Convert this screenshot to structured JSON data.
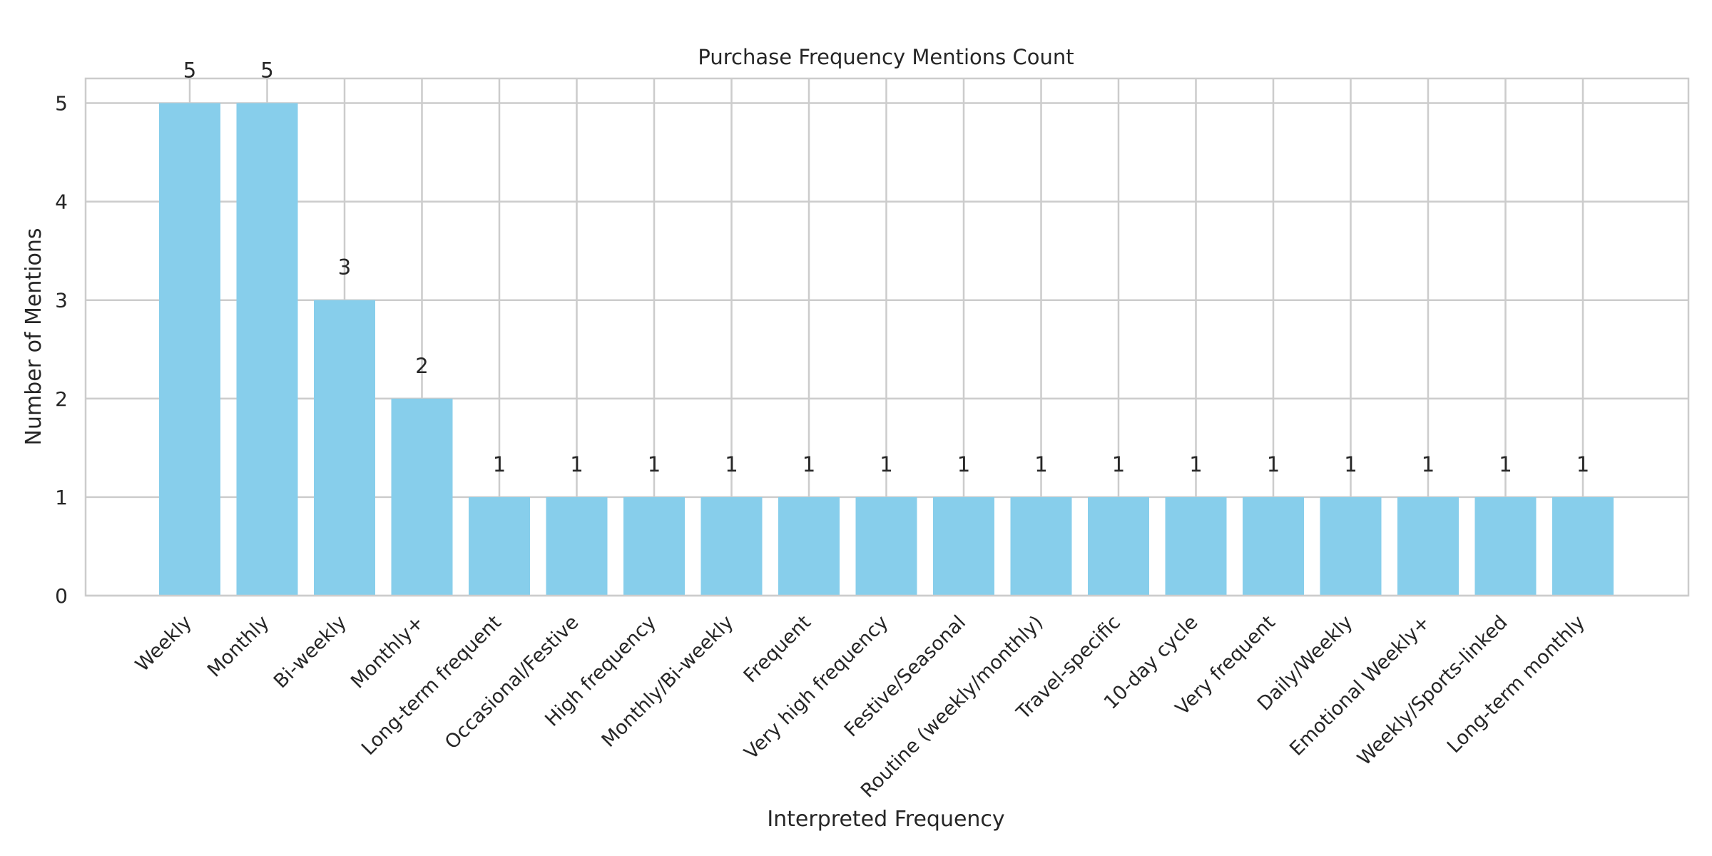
{
  "chart_data": {
    "type": "bar",
    "title": "Purchase Frequency Mentions Count",
    "xlabel": "Interpreted Frequency",
    "ylabel": "Number of Mentions",
    "ylim": [
      0,
      5.25
    ],
    "yticks": [
      "0",
      "1",
      "2",
      "3",
      "4",
      "5"
    ],
    "grid": true,
    "bar_color": "#87CEEB",
    "grid_color": "#CCCCCC",
    "categories": [
      "Weekly",
      "Monthly",
      "Bi-weekly",
      "Monthly+",
      "Long-term frequent",
      "Occasional/Festive",
      "High frequency",
      "Monthly/Bi-weekly",
      "Frequent",
      "Very high frequency",
      "Festive/Seasonal",
      "Routine (weekly/monthly)",
      "Travel-specific",
      "10-day cycle",
      "Very frequent",
      "Daily/Weekly",
      "Emotional Weekly+",
      "Weekly/Sports-linked",
      "Long-term monthly"
    ],
    "values": [
      5,
      5,
      3,
      2,
      1,
      1,
      1,
      1,
      1,
      1,
      1,
      1,
      1,
      1,
      1,
      1,
      1,
      1,
      1
    ],
    "data_labels": [
      "5",
      "5",
      "3",
      "2",
      "1",
      "1",
      "1",
      "1",
      "1",
      "1",
      "1",
      "1",
      "1",
      "1",
      "1",
      "1",
      "1",
      "1",
      "1"
    ]
  }
}
